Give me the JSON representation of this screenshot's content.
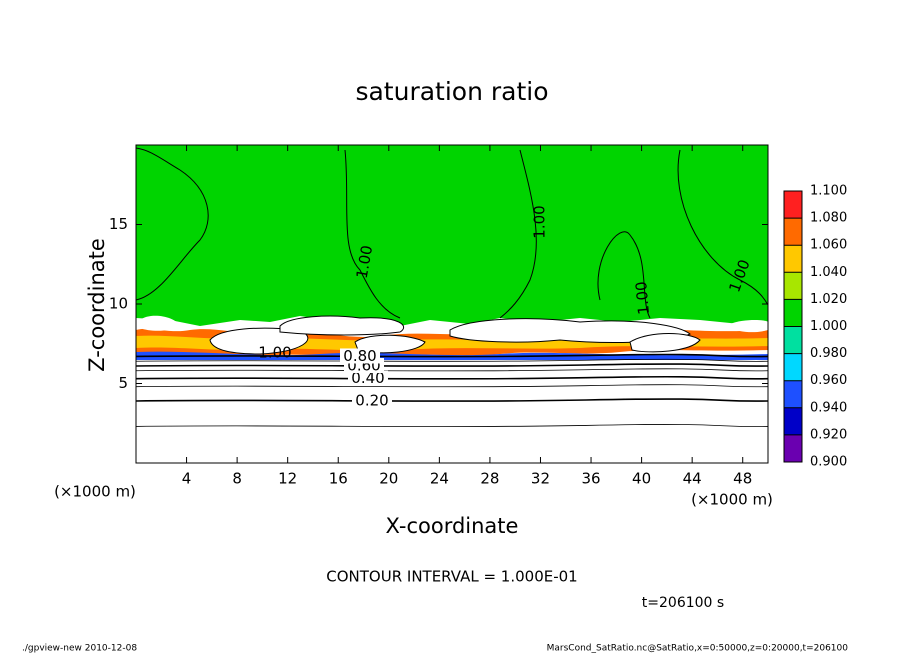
{
  "chart_data": {
    "type": "contour",
    "title": "saturation ratio",
    "x_label": "X-coordinate",
    "y_label": "Z-coordinate",
    "x_unit": "(×1000 m)",
    "y_unit": "(×1000 m)",
    "xlim": [
      0,
      50
    ],
    "ylim": [
      0,
      20
    ],
    "xticks": [
      4,
      8,
      12,
      16,
      20,
      24,
      28,
      32,
      36,
      40,
      44,
      48
    ],
    "yticks": [
      5,
      10,
      15
    ],
    "colorbar": {
      "ticks": [
        {
          "value": 0.9,
          "label": "0.900"
        },
        {
          "value": 0.92,
          "label": "0.920"
        },
        {
          "value": 0.94,
          "label": "0.940"
        },
        {
          "value": 0.96,
          "label": "0.960"
        },
        {
          "value": 0.98,
          "label": "0.980"
        },
        {
          "value": 1.0,
          "label": "1.000"
        },
        {
          "value": 1.02,
          "label": "1.020"
        },
        {
          "value": 1.04,
          "label": "1.040"
        },
        {
          "value": 1.06,
          "label": "1.060"
        },
        {
          "value": 1.08,
          "label": "1.080"
        },
        {
          "value": 1.1,
          "label": "1.100"
        }
      ],
      "colors": [
        "#6a00b0",
        "#0000c8",
        "#1e50ff",
        "#00d8ff",
        "#00e0a0",
        "#00d400",
        "#a8e600",
        "#ffc800",
        "#ff6a00",
        "#ff2020"
      ]
    },
    "contours": [
      {
        "value": 0.1,
        "z": 2.3
      },
      {
        "value": 0.2,
        "label": "0.20",
        "z": 3.9
      },
      {
        "value": 0.3,
        "z": 4.8
      },
      {
        "value": 0.4,
        "label": "0.40",
        "z": 5.3
      },
      {
        "value": 0.5,
        "z": 5.8
      },
      {
        "value": 0.6,
        "label": "0.60",
        "z": 6.1
      },
      {
        "value": 0.7,
        "z": 6.4
      },
      {
        "value": 0.8,
        "label": "0.80",
        "z": 6.7
      },
      {
        "value": 1.0,
        "label": "1.00"
      }
    ],
    "contour_interval": "CONTOUR INTERVAL = 1.000E-01",
    "time_label": "t=206100 s",
    "footer_left": "./gpview-new  2010-12-08",
    "footer_right": "MarsCond_SatRatio.nc@SatRatio,x=0:50000,z=0:20000,t=206100"
  }
}
